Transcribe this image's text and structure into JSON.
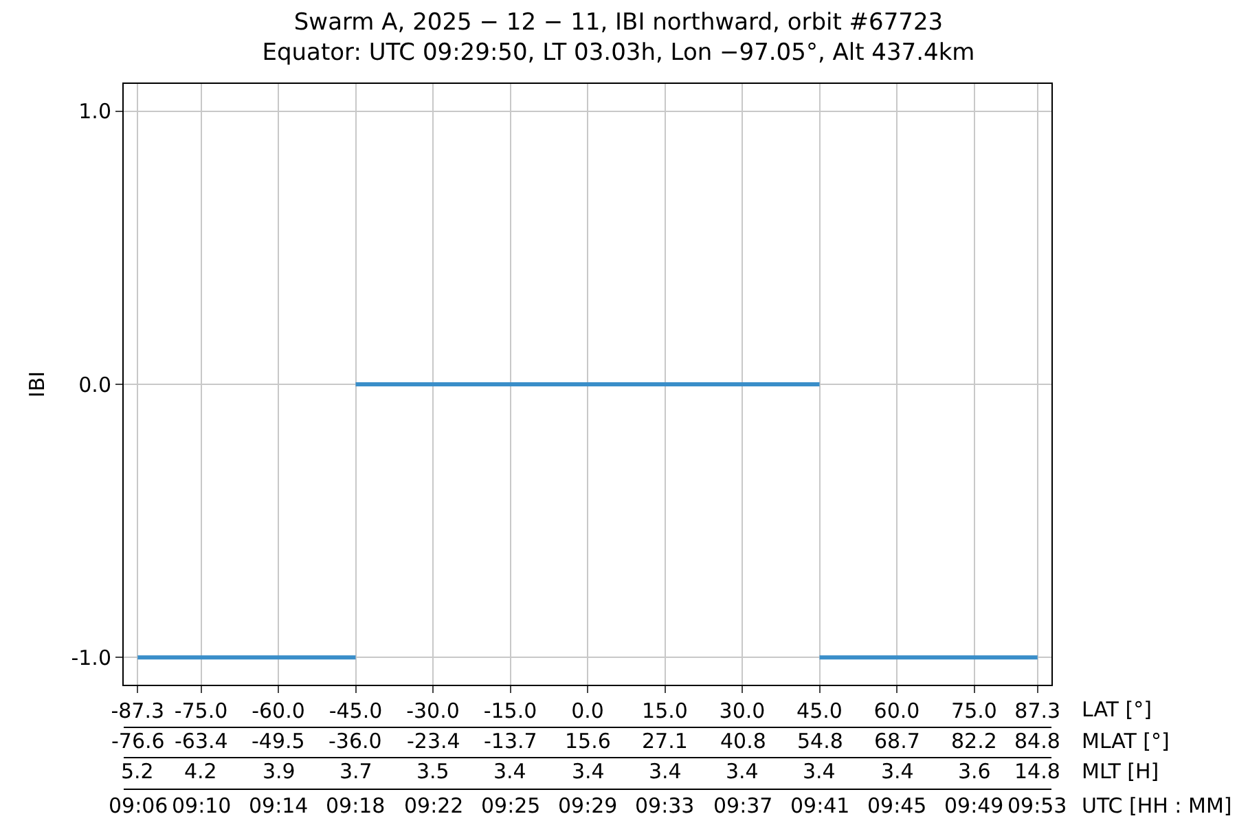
{
  "chart_data": {
    "type": "line",
    "title": "Swarm A, 2025 − 12 − 11, IBI northward, orbit #67723",
    "subtitle": "Equator: UTC 09:29:50, LT 03.03h, Lon −97.05°, Alt 437.4km",
    "ylabel": "IBI",
    "xlabel": "LAT [°]",
    "series": [
      {
        "color": "#3a8ec9",
        "x": [
          -87.3,
          -45.0
        ],
        "values": [
          -1,
          -1
        ]
      },
      {
        "color": "#3a8ec9",
        "x": [
          -45.0,
          45.0
        ],
        "values": [
          0,
          0
        ]
      },
      {
        "color": "#3a8ec9",
        "x": [
          45.0,
          87.3
        ],
        "values": [
          -1,
          -1
        ]
      }
    ],
    "xlim": [
      -90,
      90
    ],
    "ylim": [
      -1.1,
      1.1
    ],
    "yticks": [
      {
        "value": -1,
        "label": "-1.0"
      },
      {
        "value": 0,
        "label": "0.0"
      },
      {
        "value": 1,
        "label": "1.0"
      }
    ],
    "xticks": [
      {
        "value": -87.3,
        "label": "-87.3"
      },
      {
        "value": -75,
        "label": "-75.0"
      },
      {
        "value": -60,
        "label": "-60.0"
      },
      {
        "value": -45,
        "label": "-45.0"
      },
      {
        "value": -30,
        "label": "-30.0"
      },
      {
        "value": -15,
        "label": "-15.0"
      },
      {
        "value": 0,
        "label": "0.0"
      },
      {
        "value": 15,
        "label": "15.0"
      },
      {
        "value": 30,
        "label": "30.0"
      },
      {
        "value": 45,
        "label": "45.0"
      },
      {
        "value": 60,
        "label": "60.0"
      },
      {
        "value": 75,
        "label": "75.0"
      },
      {
        "value": 87.3,
        "label": "87.3"
      }
    ],
    "annotations": [
      "MLAT [°]",
      "-76.6",
      "-63.4",
      "-49.5",
      "-36.0",
      "-23.4",
      "-13.7",
      "15.6",
      "27.1",
      "40.8",
      "54.8",
      "68.7",
      "82.2",
      "84.8",
      "MLT [H]",
      "5.2",
      "4.2",
      "3.9",
      "3.7",
      "3.5",
      "3.4",
      "3.4",
      "3.4",
      "3.4",
      "3.4",
      "3.4",
      "3.6",
      "14.8",
      "UTC [HH : MM]",
      "09:06",
      "09:10",
      "09:14",
      "09:18",
      "09:22",
      "09:25",
      "09:29",
      "09:33",
      "09:37",
      "09:41",
      "09:45",
      "09:49",
      "09:53"
    ],
    "grid": true,
    "marker": "none",
    "line_style": "solid"
  }
}
